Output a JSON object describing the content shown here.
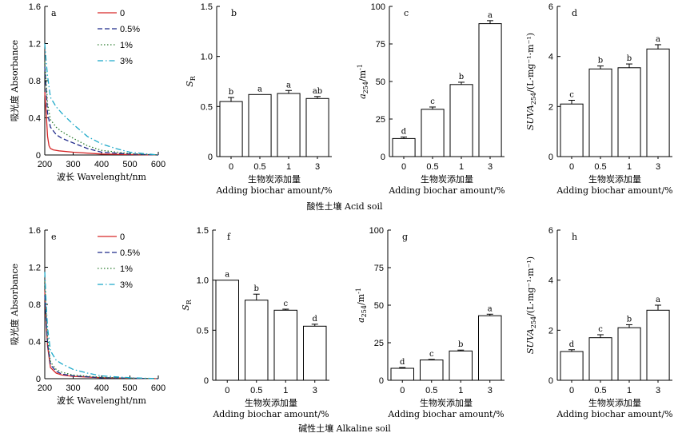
{
  "captions": {
    "acid": "酸性土壤 Acid soil",
    "alkaline": "碱性土壤 Alkaline soil"
  },
  "chart_data": [
    {
      "panel": "a",
      "type": "line",
      "xlabel": "波长 Wavelenght/nm",
      "ylabel": "吸光度 Absorbance",
      "xlim": [
        200,
        600
      ],
      "ylim": [
        0,
        1.6
      ],
      "xticks": [
        "200",
        "300",
        "400",
        "500",
        "600"
      ],
      "yticks": [
        "0",
        "0.4",
        "0.8",
        "1.2",
        "1.6"
      ],
      "legend_position": "top-right",
      "series": [
        {
          "name": "0",
          "color": "#d62728",
          "dash": "solid",
          "x": [
            200,
            205,
            210,
            215,
            220,
            230,
            250,
            300,
            400,
            500,
            600
          ],
          "y": [
            0.68,
            0.45,
            0.2,
            0.1,
            0.07,
            0.055,
            0.045,
            0.03,
            0.01,
            0.005,
            0.0
          ]
        },
        {
          "name": "0.5%",
          "color": "#1f2a8a",
          "dash": "dashed",
          "x": [
            200,
            205,
            210,
            220,
            240,
            260,
            300,
            350,
            400,
            500,
            600
          ],
          "y": [
            0.95,
            0.7,
            0.45,
            0.3,
            0.22,
            0.18,
            0.13,
            0.07,
            0.03,
            0.01,
            0.0
          ]
        },
        {
          "name": "1%",
          "color": "#2e7d32",
          "dash": "dotted",
          "x": [
            200,
            205,
            210,
            220,
            240,
            260,
            300,
            350,
            400,
            500,
            600
          ],
          "y": [
            1.0,
            0.78,
            0.55,
            0.38,
            0.3,
            0.25,
            0.18,
            0.1,
            0.05,
            0.015,
            0.0
          ]
        },
        {
          "name": "3%",
          "color": "#1ca9c9",
          "dash": "dashdot",
          "x": [
            200,
            205,
            210,
            220,
            240,
            260,
            300,
            350,
            400,
            450,
            500,
            600
          ],
          "y": [
            1.2,
            1.0,
            0.85,
            0.62,
            0.52,
            0.45,
            0.33,
            0.2,
            0.12,
            0.07,
            0.03,
            0.0
          ]
        }
      ]
    },
    {
      "panel": "b",
      "type": "bar",
      "ylabel": "S_R",
      "xlabel": "生物炭添加量",
      "xlabel2": "Adding biochar amount/%",
      "categories": [
        "0",
        "0.5",
        "1",
        "3"
      ],
      "values": [
        0.55,
        0.62,
        0.63,
        0.58
      ],
      "errors": [
        0.04,
        0.0,
        0.03,
        0.02
      ],
      "letters": [
        "b",
        "a",
        "a",
        "ab"
      ],
      "ylim": [
        0,
        1.5
      ],
      "yticks": [
        "0",
        "0.5",
        "1.0",
        "1.5"
      ],
      "yformat": 1
    },
    {
      "panel": "c",
      "type": "bar",
      "ylabel": "a_254/m^-1",
      "xlabel": "生物炭添加量",
      "xlabel2": "Adding biochar amount/%",
      "categories": [
        "0",
        "0.5",
        "1",
        "3"
      ],
      "values": [
        12,
        31.5,
        48,
        88.5
      ],
      "errors": [
        1,
        1.5,
        1.5,
        2
      ],
      "letters": [
        "d",
        "c",
        "b",
        "a"
      ],
      "ylim": [
        0,
        100
      ],
      "yticks": [
        "0",
        "25",
        "50",
        "75",
        "100"
      ],
      "yformat": 0
    },
    {
      "panel": "d",
      "type": "bar",
      "ylabel": "SUVA254/(L·mg⁻¹·m⁻¹)",
      "xlabel": "生物炭添加量",
      "xlabel2": "Adding biochar amount/%",
      "categories": [
        "0",
        "0.5",
        "1",
        "3"
      ],
      "values": [
        2.1,
        3.5,
        3.55,
        4.3
      ],
      "errors": [
        0.15,
        0.12,
        0.15,
        0.17
      ],
      "letters": [
        "c",
        "b",
        "b",
        "a"
      ],
      "ylim": [
        0,
        6
      ],
      "yticks": [
        "0",
        "2",
        "4",
        "6"
      ],
      "yformat": 0
    },
    {
      "panel": "e",
      "type": "line",
      "xlabel": "波长 Wavelenght/nm",
      "ylabel": "吸光度 Absorbance",
      "xlim": [
        200,
        600
      ],
      "ylim": [
        0,
        1.6
      ],
      "xticks": [
        "200",
        "300",
        "400",
        "500",
        "600"
      ],
      "yticks": [
        "0",
        "0.4",
        "0.8",
        "1.2",
        "1.6"
      ],
      "legend_position": "top-right",
      "series": [
        {
          "name": "0",
          "color": "#d62728",
          "dash": "solid",
          "x": [
            200,
            205,
            210,
            220,
            240,
            260,
            300,
            400,
            500,
            600
          ],
          "y": [
            0.95,
            0.6,
            0.35,
            0.12,
            0.06,
            0.04,
            0.025,
            0.01,
            0.005,
            0.0
          ]
        },
        {
          "name": "0.5%",
          "color": "#1f2a8a",
          "dash": "dashed",
          "x": [
            200,
            205,
            210,
            220,
            240,
            260,
            300,
            400,
            500,
            600
          ],
          "y": [
            0.9,
            0.62,
            0.38,
            0.15,
            0.08,
            0.05,
            0.03,
            0.01,
            0.005,
            0.0
          ]
        },
        {
          "name": "1%",
          "color": "#2e7d32",
          "dash": "dotted",
          "x": [
            200,
            205,
            210,
            220,
            240,
            260,
            300,
            400,
            500,
            600
          ],
          "y": [
            1.05,
            0.7,
            0.45,
            0.18,
            0.1,
            0.07,
            0.04,
            0.015,
            0.005,
            0.0
          ]
        },
        {
          "name": "3%",
          "color": "#1ca9c9",
          "dash": "dashdot",
          "x": [
            200,
            205,
            210,
            220,
            240,
            260,
            300,
            350,
            400,
            500,
            600
          ],
          "y": [
            1.15,
            0.8,
            0.55,
            0.3,
            0.2,
            0.16,
            0.1,
            0.06,
            0.03,
            0.01,
            0.0
          ]
        }
      ]
    },
    {
      "panel": "f",
      "type": "bar",
      "ylabel": "S_R",
      "xlabel": "生物炭添加量",
      "xlabel2": "Adding biochar amount/%",
      "categories": [
        "0",
        "0.5",
        "1",
        "3"
      ],
      "values": [
        1.0,
        0.8,
        0.7,
        0.54
      ],
      "errors": [
        0.0,
        0.06,
        0.01,
        0.02
      ],
      "letters": [
        "a",
        "b",
        "c",
        "d"
      ],
      "ylim": [
        0,
        1.5
      ],
      "yticks": [
        "0",
        "0.5",
        "1.0",
        "1.5"
      ],
      "yformat": 1
    },
    {
      "panel": "g",
      "type": "bar",
      "ylabel": "a_254/m^-1",
      "xlabel": "生物炭添加量",
      "xlabel2": "Adding biochar amount/%",
      "categories": [
        "0",
        "0.5",
        "1",
        "3"
      ],
      "values": [
        8,
        13.5,
        19.5,
        43
      ],
      "errors": [
        0.5,
        0.4,
        0.6,
        1
      ],
      "letters": [
        "d",
        "c",
        "b",
        "a"
      ],
      "ylim": [
        0,
        100
      ],
      "yticks": [
        "0",
        "25",
        "50",
        "75",
        "100"
      ],
      "yformat": 0
    },
    {
      "panel": "h",
      "type": "bar",
      "ylabel": "SUVA254/(L·mg⁻¹·m⁻¹)",
      "xlabel": "生物炭添加量",
      "xlabel2": "Adding biochar amount/%",
      "categories": [
        "0",
        "0.5",
        "1",
        "3"
      ],
      "values": [
        1.15,
        1.7,
        2.1,
        2.8
      ],
      "errors": [
        0.07,
        0.12,
        0.12,
        0.2
      ],
      "letters": [
        "d",
        "c",
        "b",
        "a"
      ],
      "ylim": [
        0,
        6
      ],
      "yticks": [
        "0",
        "2",
        "4",
        "6"
      ],
      "yformat": 0
    }
  ]
}
